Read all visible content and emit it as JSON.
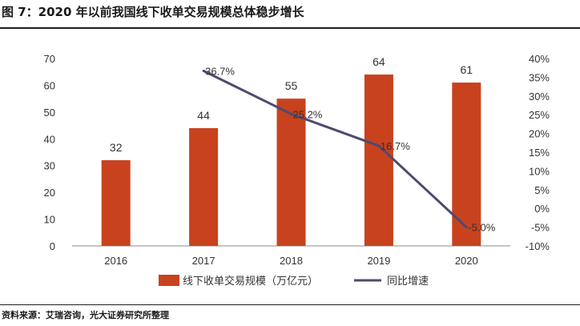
{
  "figure": {
    "title": "图 7：2020 年以前我国线下收单交易规模总体稳步增长",
    "source": "资料来源：艾瑞咨询，光大证券研究所整理"
  },
  "colors": {
    "bar": "#c8421e",
    "line": "#4e4a6e",
    "axis": "#888888",
    "text": "#333333"
  },
  "chart_data": {
    "type": "bar",
    "categories": [
      "2016",
      "2017",
      "2018",
      "2019",
      "2020"
    ],
    "series": [
      {
        "name": "线下收单交易规模（万亿元）",
        "type": "bar",
        "axis": "left",
        "values": [
          32,
          44,
          55,
          64,
          61
        ],
        "labels": [
          "32",
          "44",
          "55",
          "64",
          "61"
        ]
      },
      {
        "name": "同比增速",
        "type": "line",
        "axis": "right",
        "x": [
          "2017",
          "2018",
          "2019",
          "2020"
        ],
        "values": [
          36.7,
          25.2,
          16.7,
          -5.0
        ],
        "labels": [
          "36.7%",
          "25.2%",
          "16.7%",
          "-5.0%"
        ]
      }
    ],
    "y_left": {
      "ylim": [
        0,
        70
      ],
      "ticks": [
        0,
        10,
        20,
        30,
        40,
        50,
        60,
        70
      ],
      "tick_labels": [
        "0",
        "10",
        "20",
        "30",
        "40",
        "50",
        "60",
        "70"
      ]
    },
    "y_right": {
      "ylim": [
        -10,
        40
      ],
      "ticks": [
        -10,
        -5,
        0,
        5,
        10,
        15,
        20,
        25,
        30,
        35,
        40
      ],
      "tick_labels": [
        "-10%",
        "-5%",
        "0%",
        "5%",
        "10%",
        "15%",
        "20%",
        "25%",
        "30%",
        "35%",
        "40%"
      ]
    },
    "grid": false,
    "legend": {
      "position": "bottom",
      "entries": [
        "线下收单交易规模（万亿元）",
        "同比增速"
      ]
    }
  }
}
